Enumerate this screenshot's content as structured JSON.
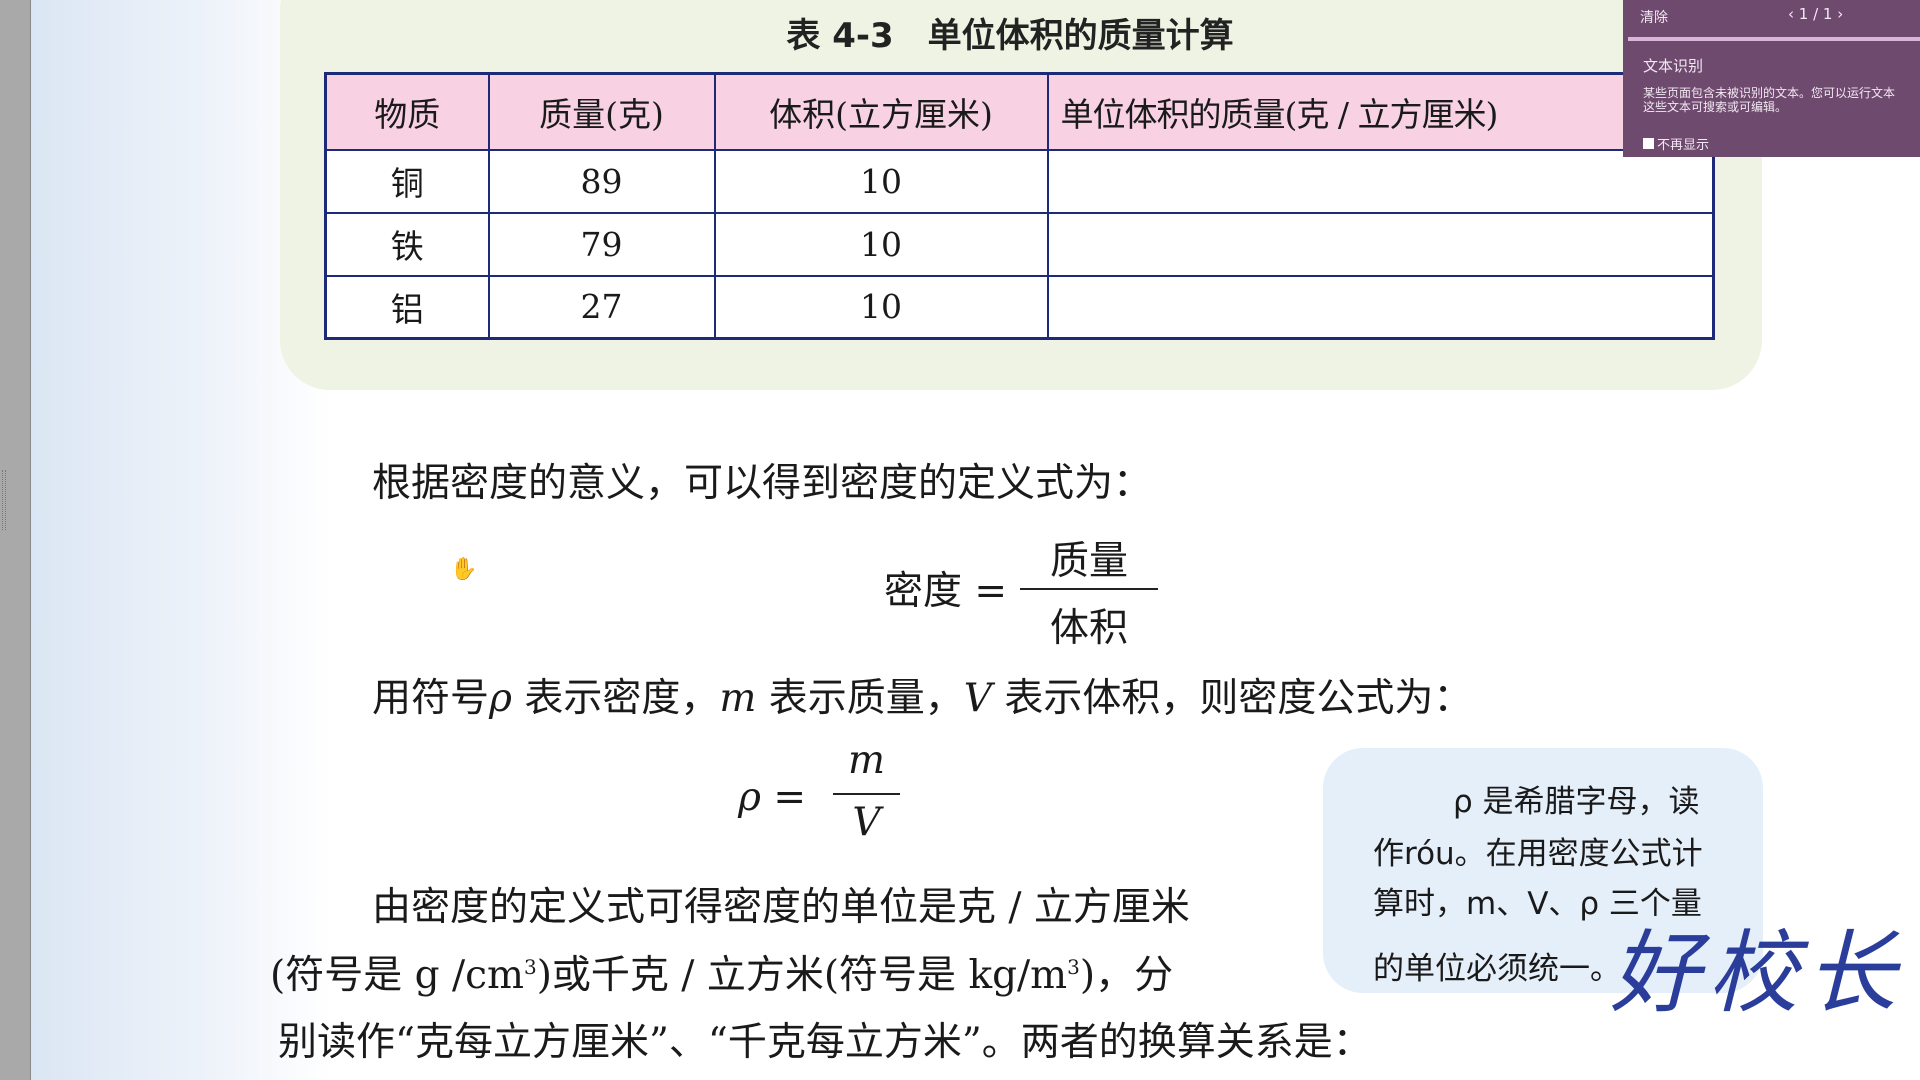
{
  "table": {
    "title": "表 4-3　单位体积的质量计算",
    "headers": [
      "物质",
      "质量(克)",
      "体积(立方厘米)",
      "单位体积的质量(克 / 立方厘米)"
    ],
    "rows": [
      [
        "铜",
        "89",
        "10",
        ""
      ],
      [
        "铁",
        "79",
        "10",
        ""
      ],
      [
        "铝",
        "27",
        "10",
        ""
      ]
    ]
  },
  "body": {
    "line1": "根据密度的意义，可以得到密度的定义式为：",
    "def_lhs": "密度 =",
    "def_num": "质量",
    "def_den": "体积",
    "line2a": "用符号",
    "rho": "ρ",
    "line2b": " 表示密度，",
    "m": "m",
    "line2c": " 表示质量，",
    "V": "V",
    "line2d": " 表示体积，则密度公式为：",
    "f_lhs": "ρ  =",
    "f_num": "m",
    "f_den": "V",
    "para1": "由密度的定义式可得密度的单位是克 / 立方厘米",
    "para2a": "(符号是 g /cm",
    "sup3": "3",
    "para2b": ")或千克 / 立方米(符号是 kg/m",
    "para2c": ")，分",
    "para3": "别读作“克每立方厘米”、“千克每立方米”。两者的换算关系是："
  },
  "note": {
    "l1": "ρ 是希腊字母，读",
    "l2": "作róu。在用密度公式计",
    "l3": "算时，m、V、ρ 三个量",
    "l4": "的单位必须统一。"
  },
  "handwriting": "好校长",
  "overlay": {
    "clear": "清除",
    "pager": "‹ 1 / 1 ›",
    "title": "文本识别",
    "msg1": "某些页面包含未被识别的文本。您可以运行文本",
    "msg2": "这些文本可搜索或可编辑。",
    "dont_show": "不再显示"
  }
}
